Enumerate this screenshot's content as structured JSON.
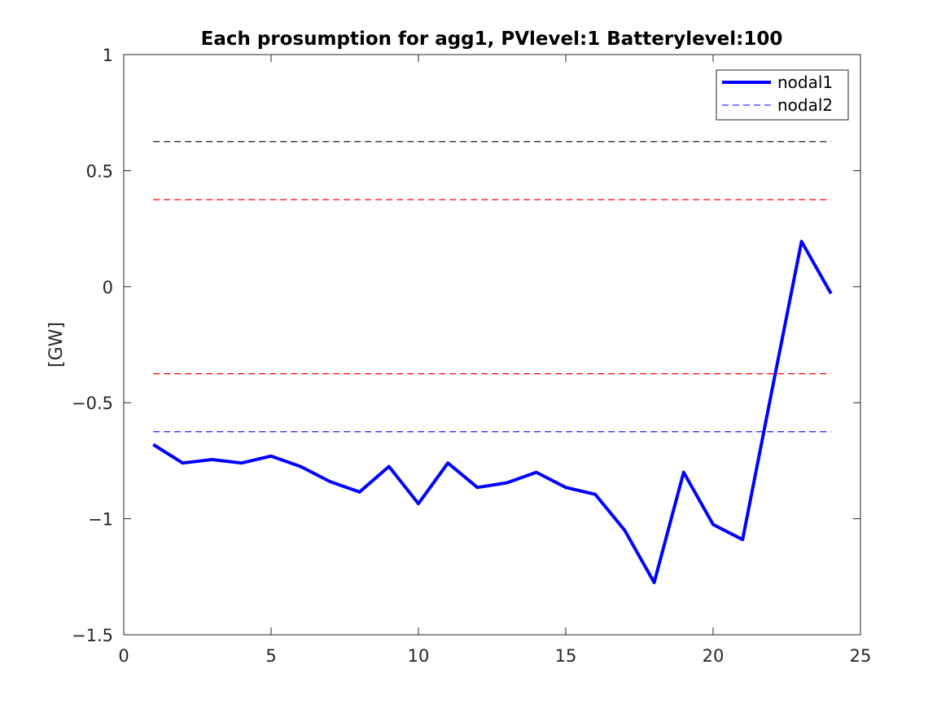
{
  "chart_data": {
    "type": "line",
    "title": "Each prosumption for agg1, PVlevel:1 Batterylevel:100",
    "xlabel": "",
    "ylabel": "[GW]",
    "xlim": [
      0,
      25
    ],
    "ylim": [
      -1.5,
      1
    ],
    "xticks": [
      0,
      5,
      10,
      15,
      20,
      25
    ],
    "xtick_labels": [
      "0",
      "5",
      "10",
      "15",
      "20",
      "25"
    ],
    "yticks": [
      -1.5,
      -1,
      -0.5,
      0,
      0.5,
      1
    ],
    "ytick_labels": [
      "−1.5",
      "−1",
      "−0.5",
      "0",
      "0.5",
      "1"
    ],
    "grid": false,
    "legend_position": "top-right",
    "series": [
      {
        "name": "nodal1",
        "color": "#0000ff",
        "style": "solid",
        "x": [
          1,
          2,
          3,
          4,
          5,
          6,
          7,
          8,
          9,
          10,
          11,
          12,
          13,
          14,
          15,
          16,
          17,
          18,
          19,
          20,
          21,
          22,
          23,
          24
        ],
        "y": [
          -0.68,
          -0.76,
          -0.745,
          -0.76,
          -0.73,
          -0.775,
          -0.84,
          -0.885,
          -0.775,
          -0.935,
          -0.76,
          -0.865,
          -0.845,
          -0.8,
          -0.865,
          -0.895,
          -1.05,
          -1.275,
          -0.8,
          -1.025,
          -1.09,
          -0.445,
          0.195,
          -0.03
        ]
      },
      {
        "name": "nodal2",
        "color": "#0000ff",
        "style": "dashed",
        "x": [
          1,
          24
        ],
        "y": [
          -0.625,
          -0.625
        ]
      },
      {
        "color": "#000000",
        "style": "dashed",
        "x": [
          1,
          24
        ],
        "y": [
          0.625,
          0.625
        ]
      },
      {
        "color": "#ff0000",
        "style": "dashed",
        "x": [
          1,
          24
        ],
        "y": [
          0.375,
          0.375
        ]
      },
      {
        "color": "#ff0000",
        "style": "dashed",
        "x": [
          1,
          24
        ],
        "y": [
          -0.375,
          -0.375
        ]
      }
    ]
  }
}
